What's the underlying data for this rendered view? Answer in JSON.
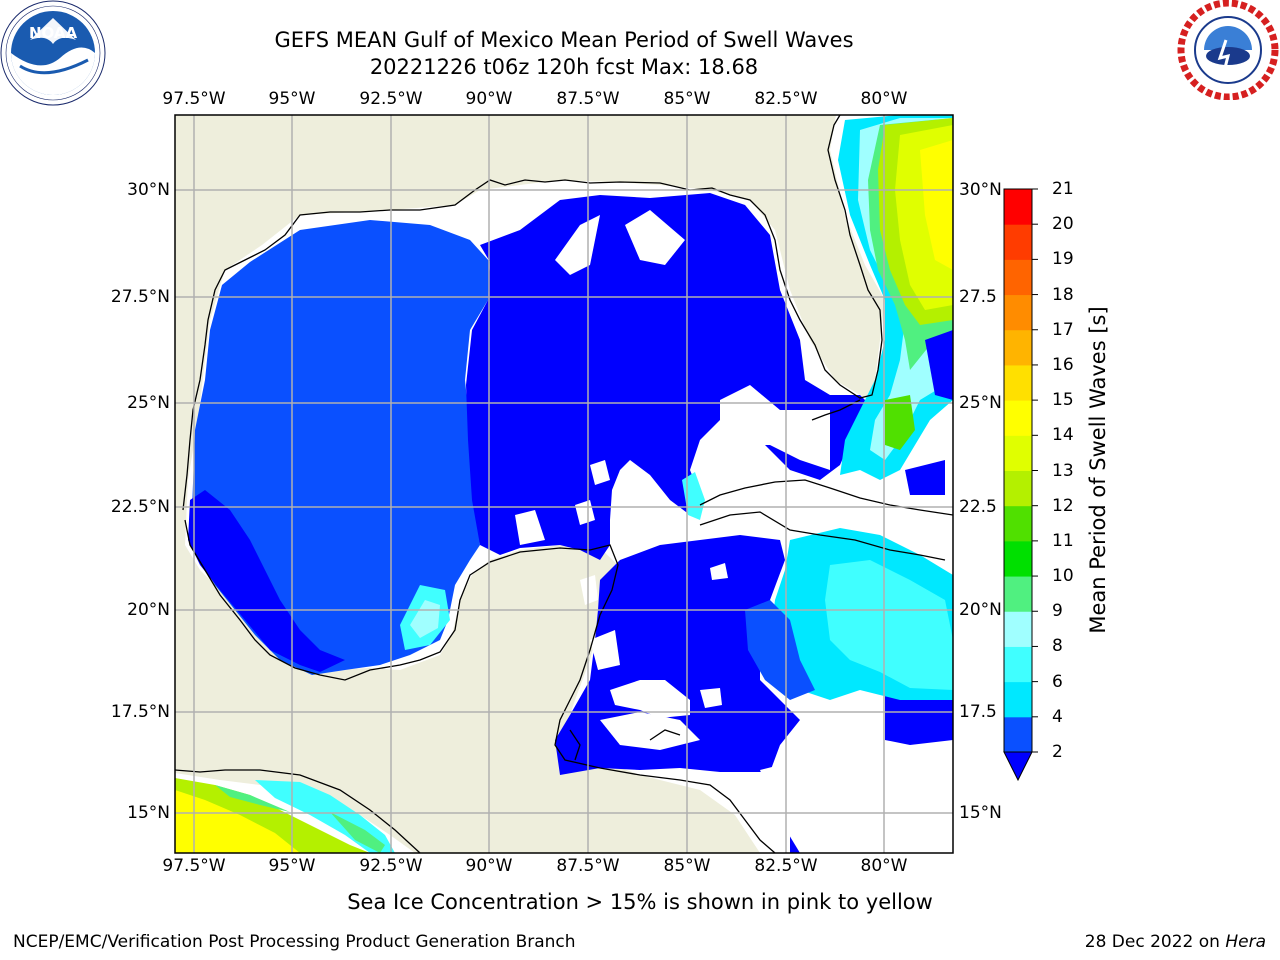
{
  "header": {
    "title_line1": "GEFS MEAN Gulf of Mexico Mean Period of Swell Waves",
    "title_line2": "20221226 t06z 120h fcst   Max: 18.68"
  },
  "map": {
    "lon_ticks": [
      "97.5°W",
      "95°W",
      "92.5°W",
      "90°W",
      "87.5°W",
      "85°W",
      "82.5°W",
      "80°W"
    ],
    "lat_ticks_left": [
      "30°N",
      "27.5°N",
      "25°N",
      "22.5°N",
      "20°N",
      "17.5°N",
      "15°N"
    ],
    "lat_ticks_right": [
      "30°N",
      "27.5",
      "25°N",
      "22.5",
      "20°N",
      "17.5",
      "15°N"
    ],
    "lon_range": [
      -98,
      -79
    ],
    "lat_range": [
      14,
      31.8
    ],
    "land_color": "#eeeedc",
    "water_no_data_color": "#ffffff"
  },
  "colorbar": {
    "label": "Mean Period of Swell Waves [s]",
    "ticks": [
      "2",
      "4",
      "6",
      "8",
      "9",
      "10",
      "11",
      "12",
      "13",
      "14",
      "15",
      "16",
      "17",
      "18",
      "19",
      "20",
      "21"
    ],
    "colors": [
      "#0a50ff",
      "#00e8ff",
      "#40ffff",
      "#a0ffff",
      "#50f080",
      "#00e000",
      "#50e000",
      "#b4f000",
      "#e0ff00",
      "#ffff00",
      "#ffe000",
      "#ffb400",
      "#ff8c00",
      "#ff6400",
      "#ff3c00",
      "#ff0000"
    ],
    "under_color": "#0000ff"
  },
  "footer": {
    "note": "Sea Ice Concentration > 15% is shown in pink to yellow",
    "credit_left": "NCEP/EMC/Verification Post Processing Product Generation Branch",
    "credit_date": "28 Dec 2022 on",
    "credit_host": "Hera"
  }
}
